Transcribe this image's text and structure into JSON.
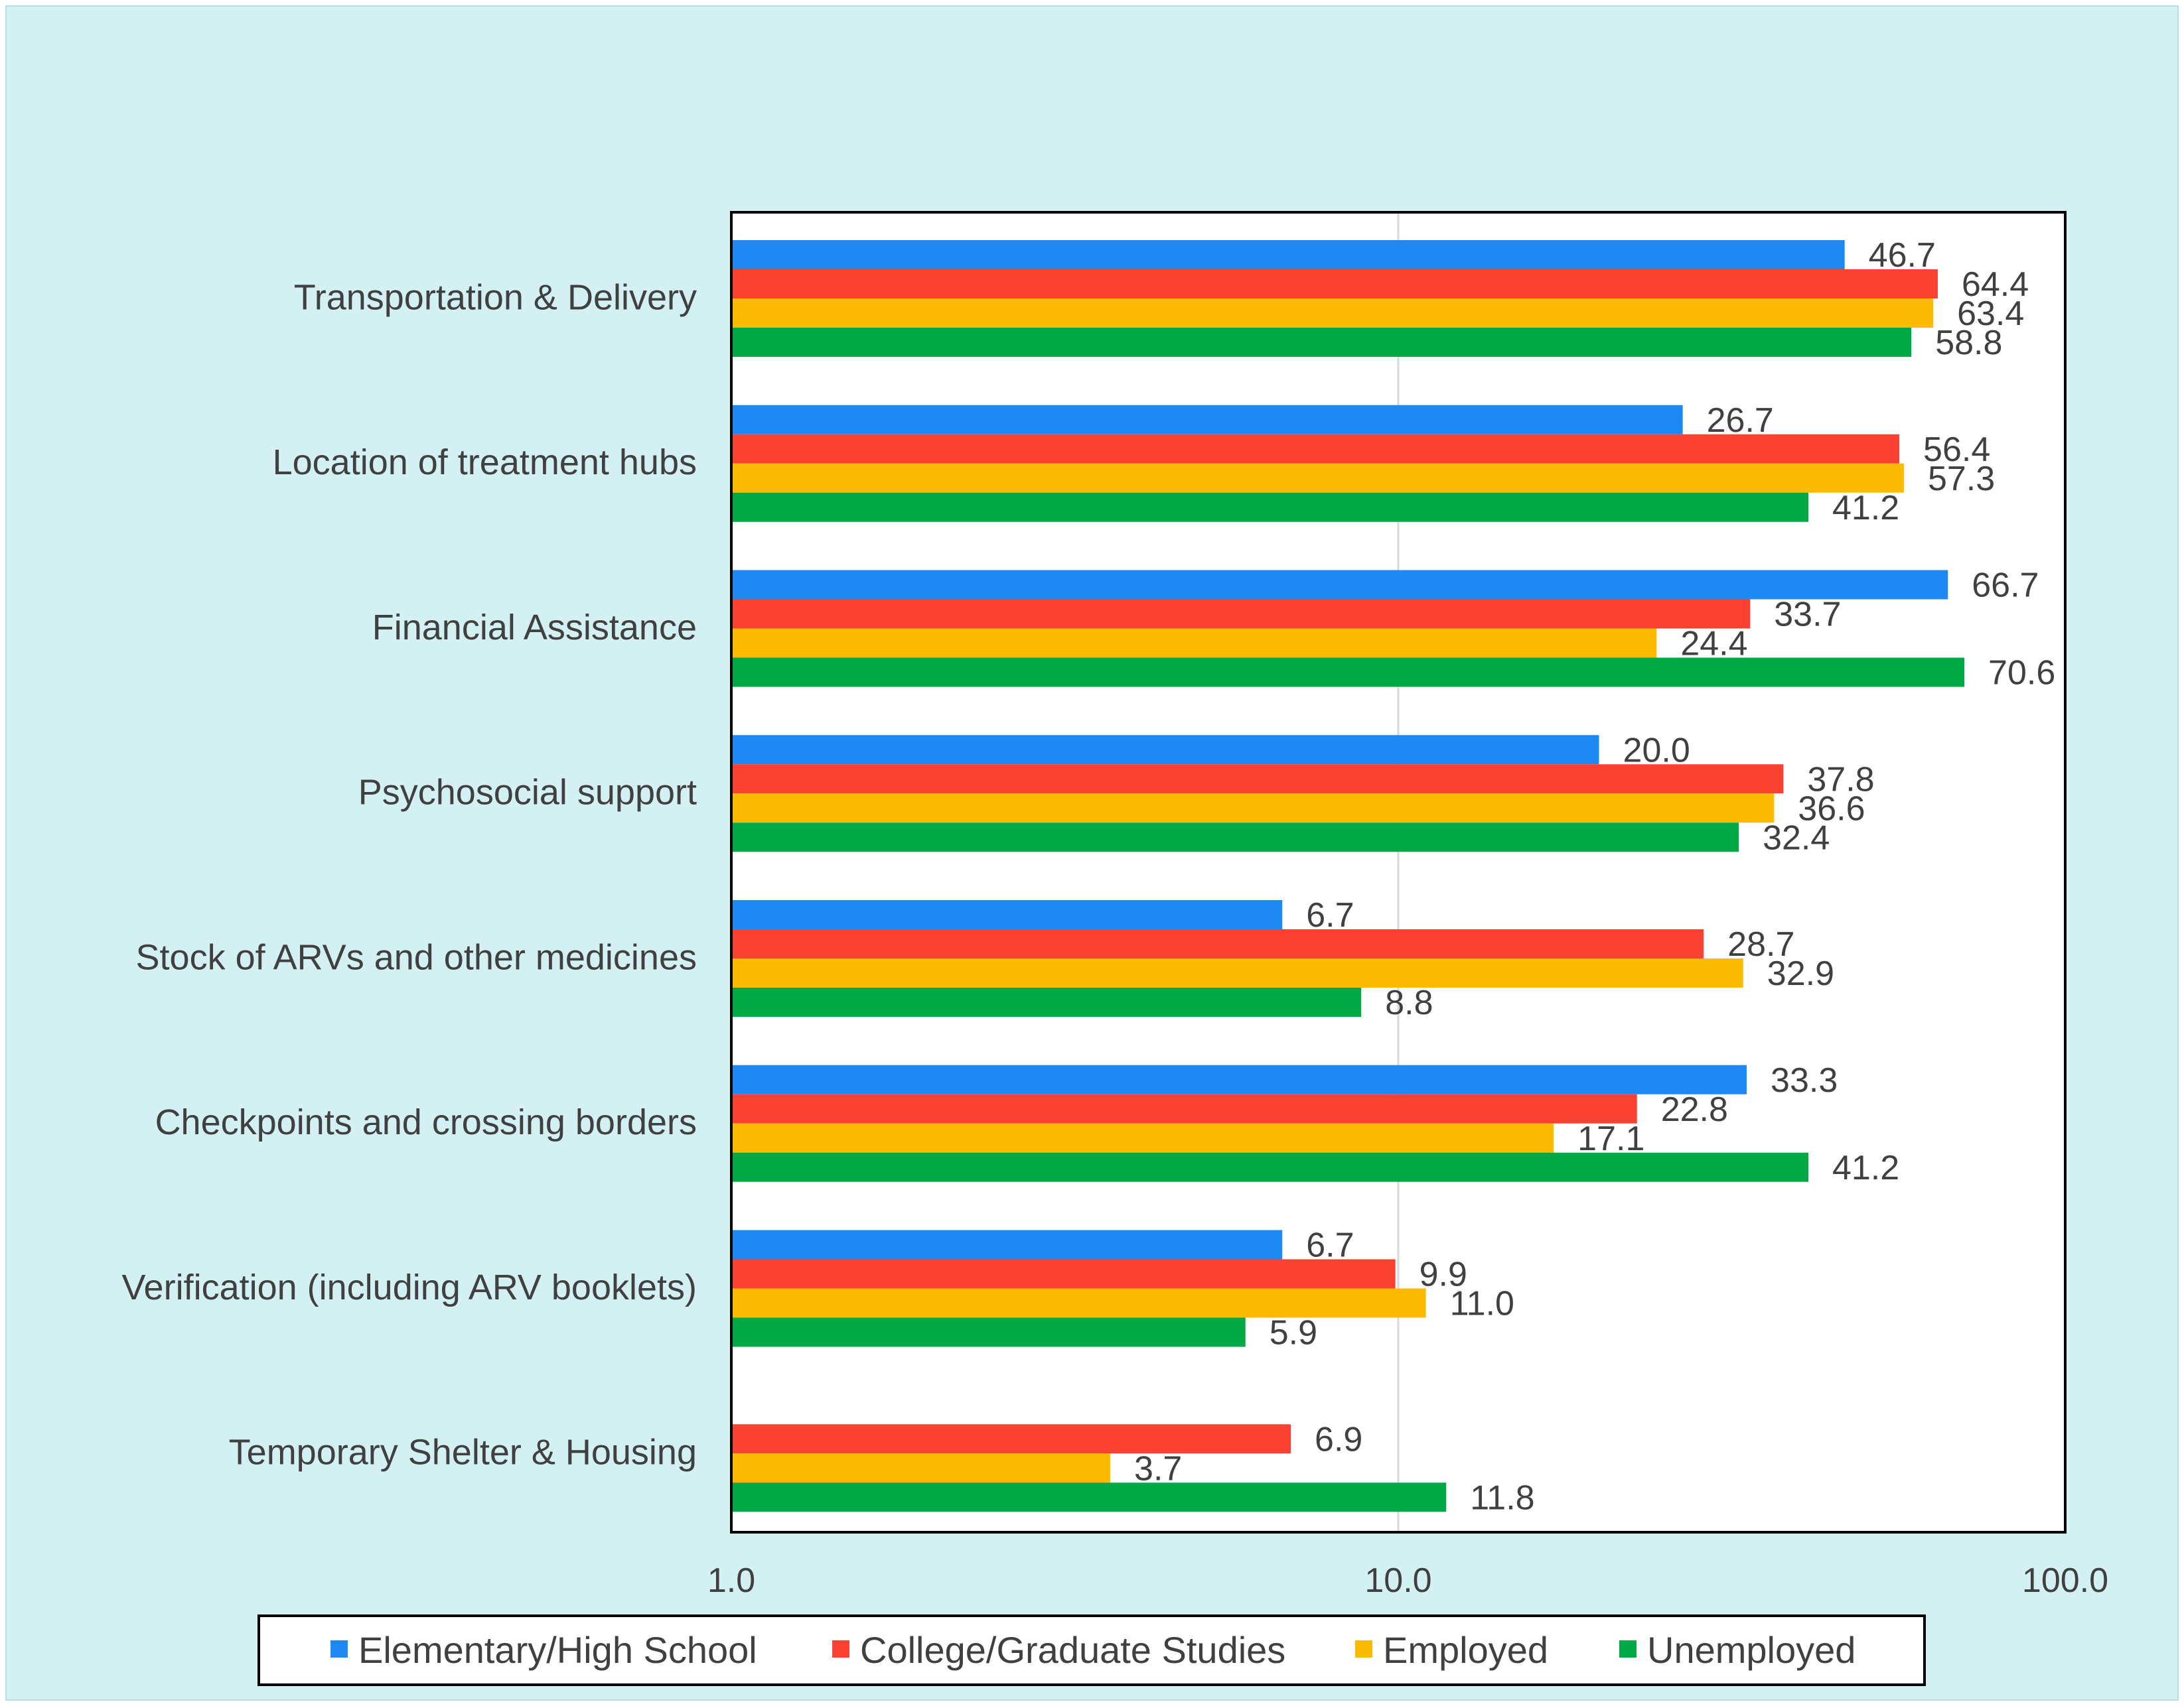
{
  "chart_data": {
    "type": "bar",
    "orientation": "horizontal",
    "x_scale": "log",
    "xlim": [
      1.0,
      100.0
    ],
    "x_ticks": [
      1.0,
      10.0,
      100.0
    ],
    "x_tick_labels": [
      "1.0",
      "10.0",
      "100.0"
    ],
    "grid": true,
    "legend_position": "bottom",
    "categories": [
      "Transportation & Delivery",
      "Location of treatment hubs",
      "Financial Assistance",
      "Psychosocial support",
      "Stock of ARVs and other medicines",
      "Checkpoints and crossing borders",
      "Verification (including ARV booklets)",
      "Temporary Shelter & Housing"
    ],
    "series": [
      {
        "name": "Elementary/High School",
        "color": "#1e88f5",
        "values": [
          46.7,
          26.7,
          66.7,
          20.0,
          6.7,
          33.3,
          6.7,
          null
        ],
        "labels": [
          "46.7",
          "26.7",
          "66.7",
          "20.0",
          "6.7",
          "33.3",
          "6.7",
          ""
        ]
      },
      {
        "name": "College/Graduate Studies",
        "color": "#fb4132",
        "values": [
          64.4,
          56.4,
          33.7,
          37.8,
          28.7,
          22.8,
          9.9,
          6.9
        ],
        "labels": [
          "64.4",
          "56.4",
          "33.7",
          "37.8",
          "28.7",
          "22.8",
          "9.9",
          "6.9"
        ]
      },
      {
        "name": "Employed",
        "color": "#fdbb00",
        "values": [
          63.4,
          57.3,
          24.4,
          36.6,
          32.9,
          17.1,
          11.0,
          3.7
        ],
        "labels": [
          "63.4",
          "57.3",
          "24.4",
          "36.6",
          "32.9",
          "17.1",
          "11.0",
          "3.7"
        ]
      },
      {
        "name": "Unemployed",
        "color": "#00a846",
        "values": [
          58.8,
          41.2,
          70.6,
          32.4,
          8.8,
          41.2,
          5.9,
          11.8
        ],
        "labels": [
          "58.8",
          "41.2",
          "70.6",
          "32.4",
          "8.8",
          "41.2",
          "5.9",
          "11.8"
        ]
      }
    ]
  }
}
